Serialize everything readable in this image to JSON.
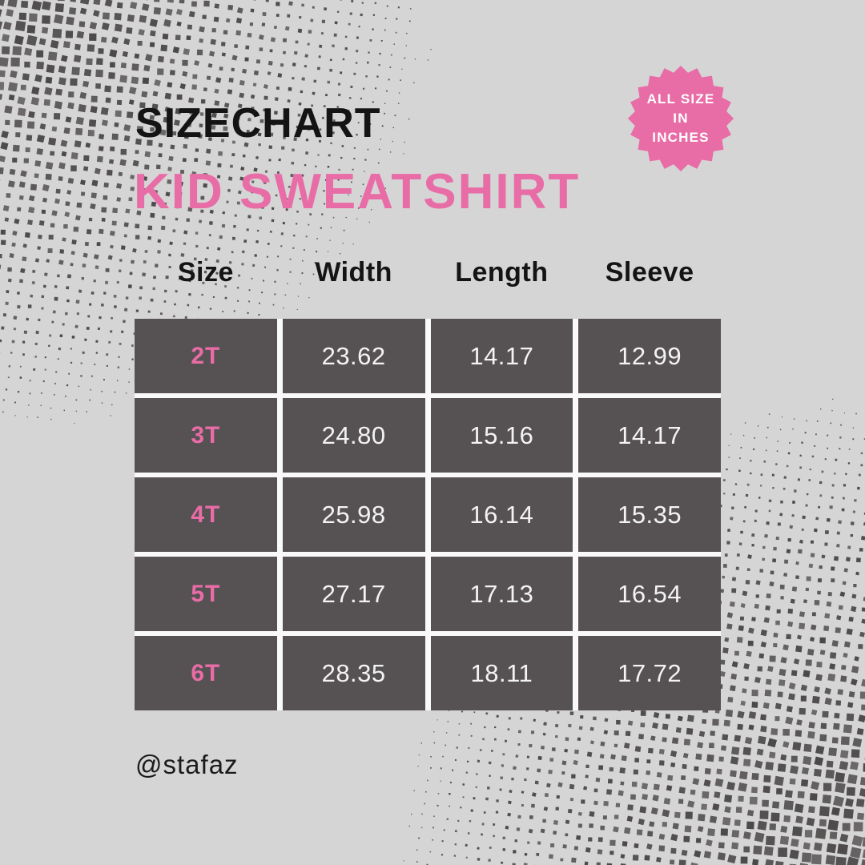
{
  "page": {
    "title": "SIZECHART",
    "subtitle": "KID SWEATSHIRT",
    "handle": "@stafaz"
  },
  "badge": {
    "lines": [
      "ALL SIZE",
      "IN",
      "INCHES"
    ]
  },
  "colors": {
    "background": "#d6d5d5",
    "pink": "#e86ca6",
    "cell": "#565253",
    "cell_text": "#f4f3f3",
    "text_dark": "#141414",
    "gap": "#faf9f9",
    "halftone": "#4b4849"
  },
  "chart_data": {
    "type": "table",
    "title": "SIZECHART — KID SWEATSHIRT",
    "units": "inches",
    "units_note": "ALL SIZE IN INCHES",
    "columns": [
      "Size",
      "Width",
      "Length",
      "Sleeve"
    ],
    "rows": [
      {
        "size": "2T",
        "width": "23.62",
        "length": "14.17",
        "sleeve": "12.99"
      },
      {
        "size": "3T",
        "width": "24.80",
        "length": "15.16",
        "sleeve": "14.17"
      },
      {
        "size": "4T",
        "width": "25.98",
        "length": "16.14",
        "sleeve": "15.35"
      },
      {
        "size": "5T",
        "width": "27.17",
        "length": "17.13",
        "sleeve": "16.54"
      },
      {
        "size": "6T",
        "width": "28.35",
        "length": "18.11",
        "sleeve": "17.72"
      }
    ]
  }
}
